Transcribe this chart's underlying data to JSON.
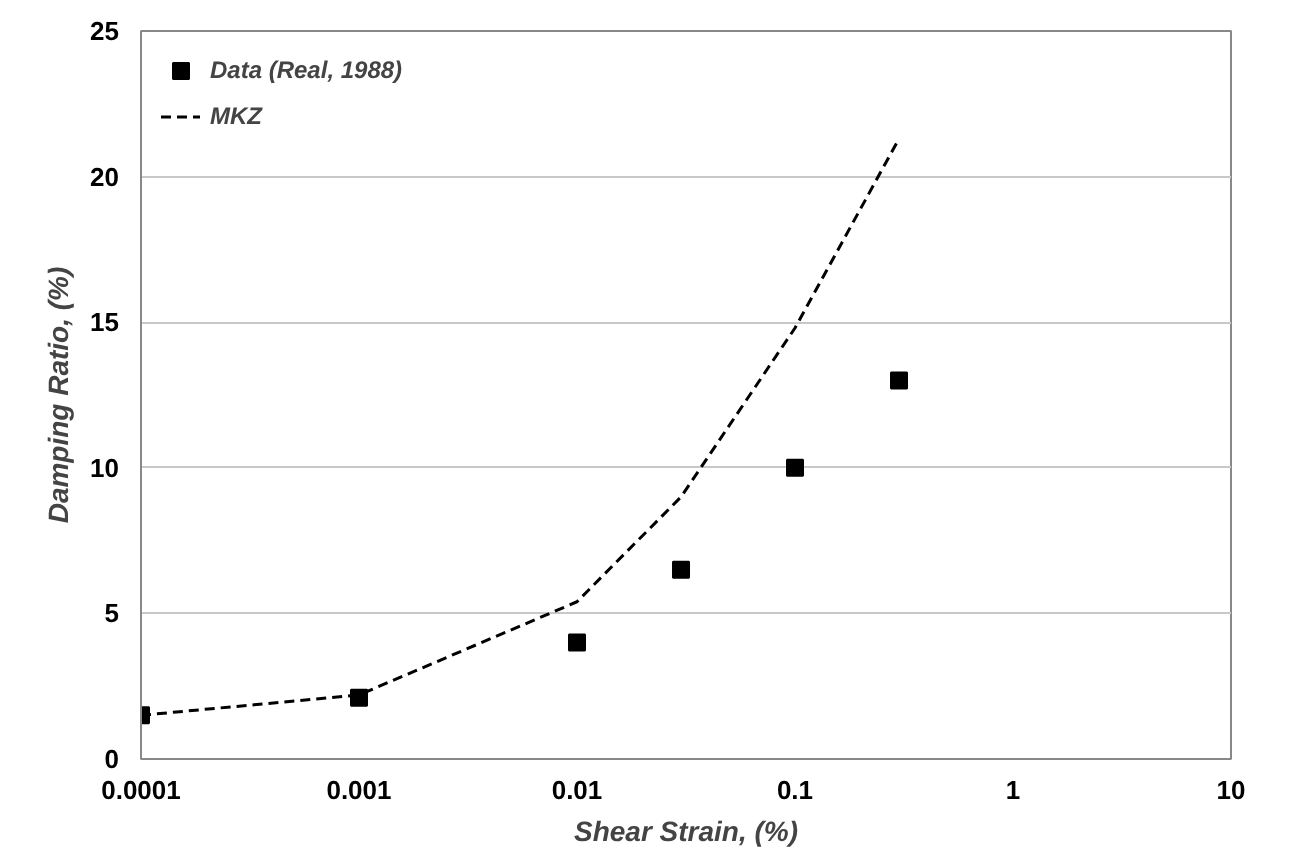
{
  "chart_data": {
    "type": "scatter",
    "xlabel": "Shear Strain, (%)",
    "ylabel": "Damping Ratio, (%)",
    "log": "x",
    "xlim": [
      0.0001,
      10
    ],
    "xticks": [
      0.0001,
      0.001,
      0.01,
      0.1,
      1,
      10
    ],
    "ylim": [
      0,
      25
    ],
    "yticks": [
      0,
      5,
      10,
      15,
      20,
      25
    ],
    "grid": "y",
    "legend": "top left",
    "series": [
      {
        "name": "Data (Real, 1988)",
        "marker": "square",
        "color": "#000000",
        "x": [
          0.0001,
          0.001,
          0.01,
          0.03,
          0.1,
          0.3
        ],
        "values": [
          1.5,
          2.1,
          4.0,
          6.5,
          10.0,
          13.0
        ]
      },
      {
        "name": "MKZ",
        "type": "line",
        "marker": "none",
        "line_style": "dashed",
        "color": "#000000",
        "x": [
          0.0001,
          0.001,
          0.01,
          0.03,
          0.1,
          0.3
        ],
        "values": [
          1.5,
          2.2,
          5.4,
          9.0,
          14.8,
          21.3
        ]
      }
    ]
  }
}
